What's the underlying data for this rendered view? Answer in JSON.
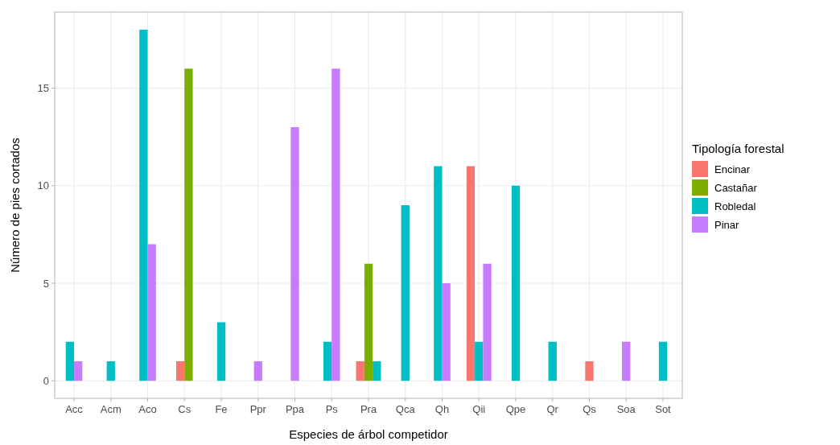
{
  "chart_data": {
    "type": "bar",
    "xlabel": "Especies de árbol competidor",
    "ylabel": "Número de pies cortados",
    "legend_title": "Tipología forestal",
    "categories": [
      "Acc",
      "Acm",
      "Aco",
      "Cs",
      "Fe",
      "Ppr",
      "Ppa",
      "Ps",
      "Pra",
      "Qca",
      "Qh",
      "Qii",
      "Qpe",
      "Qr",
      "Qs",
      "Soa",
      "Sot"
    ],
    "series": [
      {
        "name": "Encinar",
        "color": "#f8766d",
        "values": [
          null,
          null,
          null,
          1,
          null,
          null,
          null,
          null,
          1,
          null,
          null,
          11,
          null,
          null,
          1,
          null,
          null
        ]
      },
      {
        "name": "Castañar",
        "color": "#7cae00",
        "values": [
          null,
          null,
          null,
          16,
          null,
          null,
          null,
          null,
          6,
          null,
          null,
          null,
          null,
          null,
          null,
          null,
          null
        ]
      },
      {
        "name": "Robledal",
        "color": "#00bfc4",
        "values": [
          2,
          1,
          18,
          null,
          3,
          null,
          null,
          2,
          1,
          9,
          11,
          2,
          10,
          2,
          null,
          null,
          2
        ]
      },
      {
        "name": "Pinar",
        "color": "#c77cff",
        "values": [
          1,
          null,
          7,
          null,
          null,
          1,
          13,
          16,
          null,
          null,
          5,
          6,
          null,
          null,
          null,
          2,
          null
        ]
      }
    ],
    "ylim": [
      -0.9,
      18.9
    ],
    "yticks": [
      0,
      5,
      10,
      15
    ],
    "grid": true,
    "legend": "right"
  }
}
